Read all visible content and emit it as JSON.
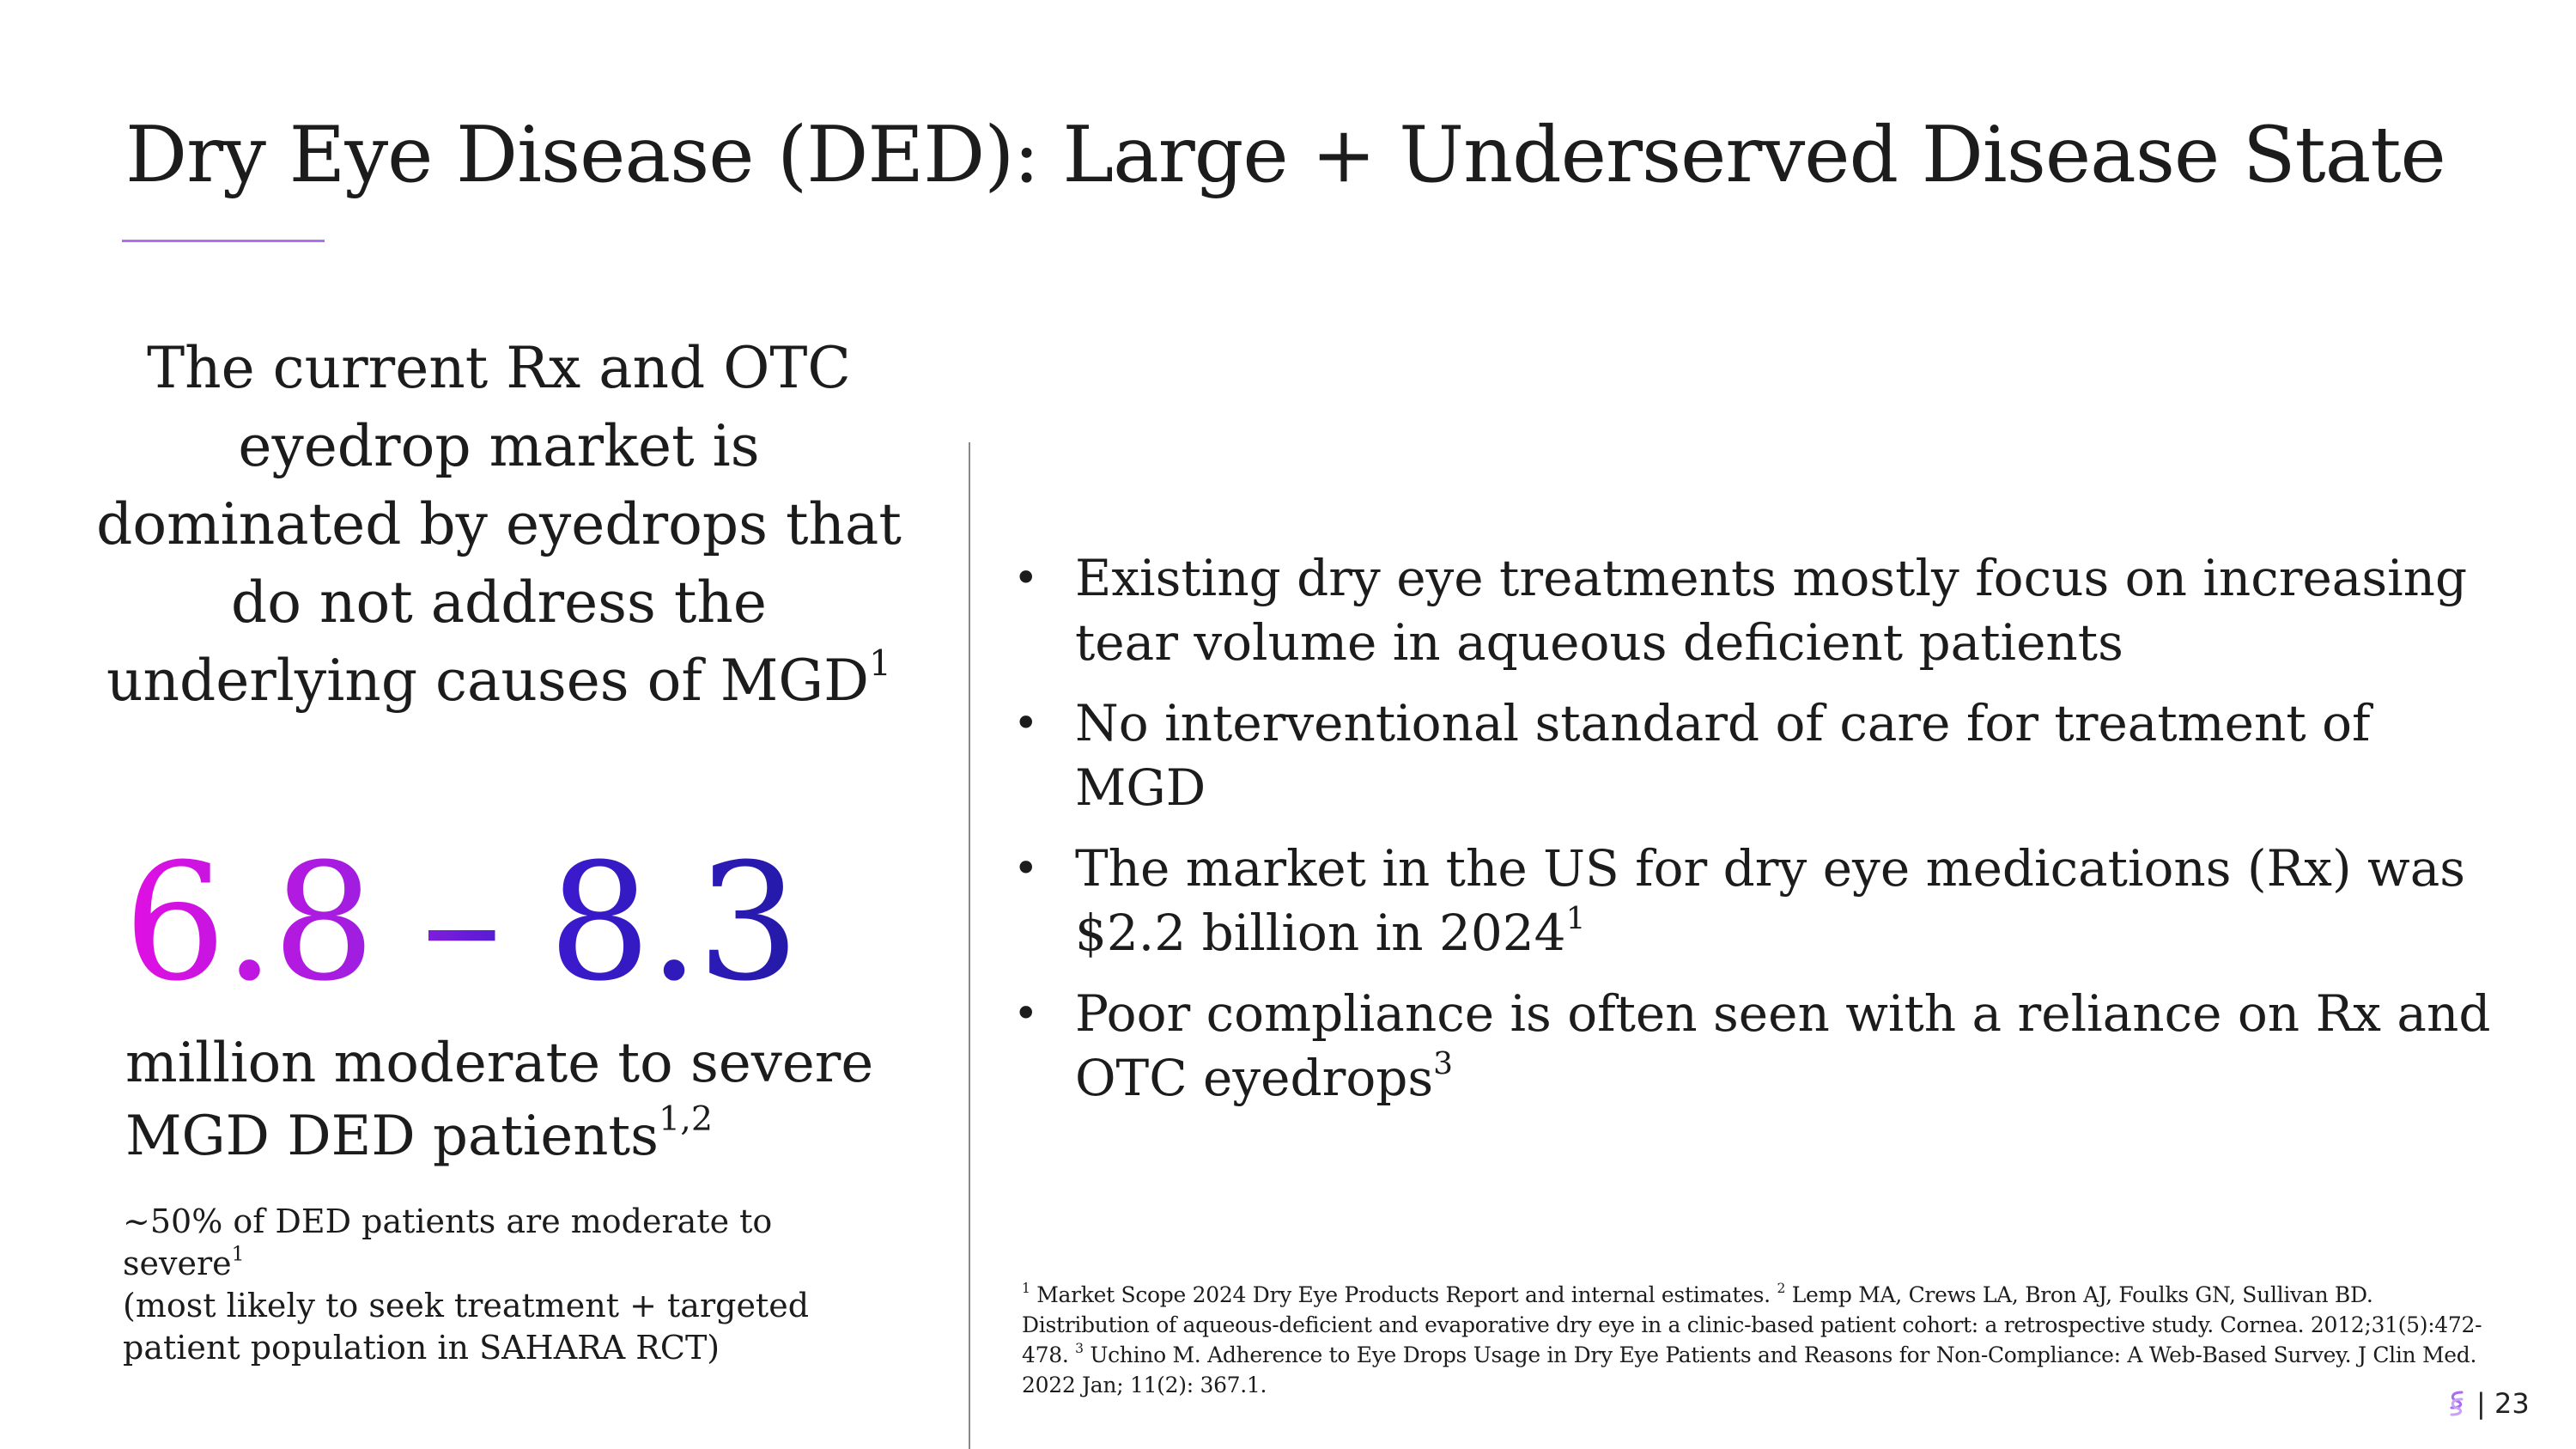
{
  "title": "Dry Eye Disease (DED): Large + Underserved Disease State",
  "intro": {
    "text": "The current Rx and OTC eyedrop market is dominated by eyedrops that do not address the underlying causes of MGD",
    "sup": "1"
  },
  "stat": {
    "range": "6.8 – 8.3",
    "label": "million moderate to severe MGD DED patients",
    "label_sup": "1,2"
  },
  "note": {
    "line1": "~50% of DED patients are moderate to severe",
    "line1_sup": "1",
    "line2": "(most likely to seek treatment + targeted patient population in SAHARA RCT)"
  },
  "bullets": [
    {
      "text": "Existing dry eye treatments mostly focus on increasing tear volume in aqueous deficient patients",
      "sup": ""
    },
    {
      "text": "No interventional standard of care for treatment of MGD",
      "sup": ""
    },
    {
      "text": "The market in the US for dry eye medications (Rx) was $2.2 billion in 2024",
      "sup": "1"
    },
    {
      "text": "Poor compliance is often seen with a reliance on Rx and OTC eyedrops",
      "sup": "3"
    }
  ],
  "references": {
    "r1_mark": "1",
    "r1": " Market Scope 2024 Dry Eye Products Report and internal estimates.  ",
    "r2_mark": "2",
    "r2": " Lemp MA, Crews LA, Bron AJ, Foulks GN, Sullivan BD. Distribution of aqueous-deficient and evaporative dry eye in a clinic-based patient cohort: a retrospective study. Cornea. 2012;31(5):472-478.  ",
    "r3_mark": "3",
    "r3": " Uchino M. Adherence to Eye Drops Usage in Dry Eye Patients and Reasons for Non-Compliance: A Web-Based Survey. J Clin Med. 2022 Jan; 11(2): 367.1."
  },
  "footer": {
    "logo_icon": "company-logo-icon",
    "page_number": "| 23"
  },
  "colors": {
    "accent_rule": "#b06ff2",
    "gradient_start": "#e20fe2",
    "gradient_end": "#241aa8",
    "divider": "#8a8a8a"
  }
}
